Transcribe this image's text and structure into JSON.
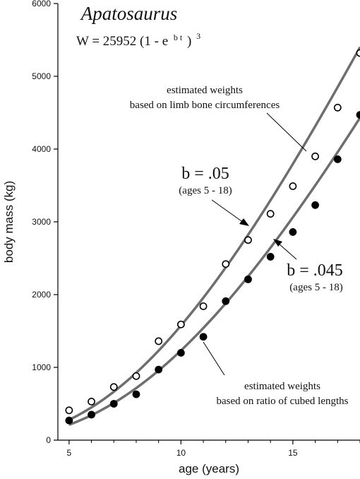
{
  "chart_data": {
    "type": "scatter",
    "title": "Apatosaurus",
    "formula": {
      "lhs": "W = 25952 (1 - e",
      "exp": "b t",
      "rhs": ")",
      "power": "3"
    },
    "xlabel": "age (years)",
    "ylabel": "body mass (kg)",
    "xlim": [
      4.5,
      18
    ],
    "ylim": [
      0,
      6000
    ],
    "xticks": [
      5,
      10,
      15
    ],
    "xtick_labels": [
      "5",
      "10",
      "15"
    ],
    "yticks": [
      0,
      1000,
      2000,
      3000,
      4000,
      5000,
      6000
    ],
    "ytick_labels": [
      "0",
      "1000",
      "2000",
      "3000",
      "4000",
      "5000",
      "6000"
    ],
    "series": [
      {
        "name": "estimated weights based on limb bone circumferences",
        "marker": "open-circle",
        "x": [
          5,
          6,
          7,
          8,
          9,
          10,
          11,
          12,
          13,
          14,
          15,
          16,
          17,
          18
        ],
        "y": [
          410,
          530,
          730,
          880,
          1360,
          1590,
          1840,
          2420,
          2750,
          3110,
          3490,
          3900,
          4570,
          5320
        ]
      },
      {
        "name": "estimated weights based on ratio of cubed lengths",
        "marker": "filled-circle",
        "x": [
          5,
          6,
          7,
          8,
          9,
          10,
          11,
          12,
          13,
          14,
          15,
          16,
          17,
          18
        ],
        "y": [
          270,
          350,
          500,
          630,
          970,
          1200,
          1420,
          1910,
          2210,
          2520,
          2860,
          3230,
          3860,
          4470
        ]
      }
    ],
    "curves": [
      {
        "name": "b = .05",
        "b": 0.05,
        "asymptote": 25952,
        "x_range": [
          5,
          18
        ],
        "y_end": 5400
      },
      {
        "name": "b = .045",
        "b": 0.045,
        "asymptote": 25952,
        "x_range": [
          5,
          18
        ],
        "y_end": 4430
      }
    ],
    "annotations": {
      "open_note_1": "estimated weights",
      "open_note_2": "based on limb bone circumferences",
      "filled_note_1": "estimated weights",
      "filled_note_2": "based on ratio of cubed lengths",
      "b05_label": "b = .05",
      "b05_sub": "(ages 5 - 18)",
      "b045_label": "b = .045",
      "b045_sub": "(ages 5 - 18)"
    },
    "colors": {
      "curve": "#6e6e6e",
      "points": "#000000",
      "axes": "#000000"
    },
    "grid": false
  }
}
